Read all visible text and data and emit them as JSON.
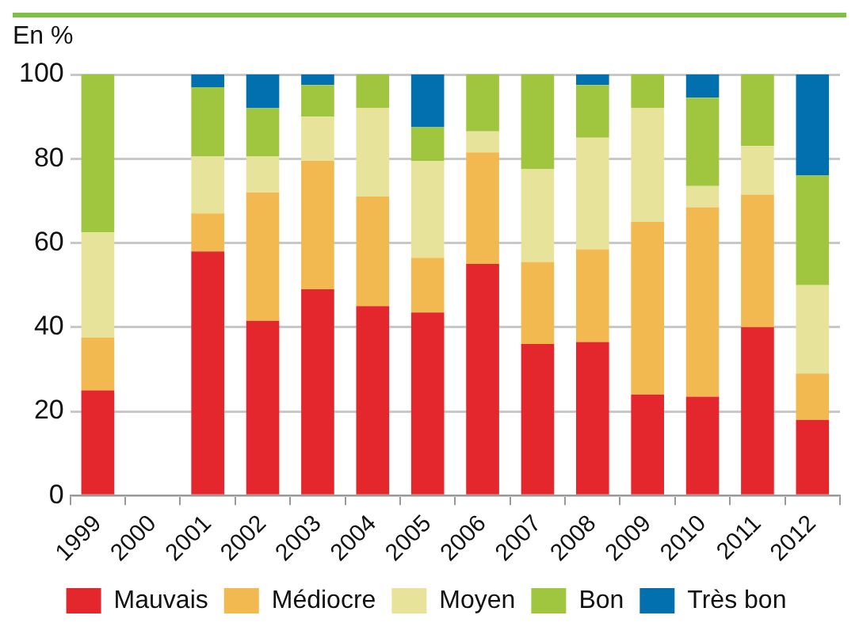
{
  "chart_data": {
    "type": "bar",
    "stacked": true,
    "ylabel": "En %",
    "categories": [
      "1999",
      "2000",
      "2001",
      "2002",
      "2003",
      "2004",
      "2005",
      "2006",
      "2007",
      "2008",
      "2009",
      "2010",
      "2011",
      "2012"
    ],
    "series": [
      {
        "name": "Mauvais",
        "color": "#e4272d",
        "values": [
          25,
          null,
          58,
          41.5,
          49,
          45,
          43.5,
          55,
          36,
          36.5,
          24,
          23.5,
          40,
          18
        ]
      },
      {
        "name": "Médiocre",
        "color": "#f1b94f",
        "values": [
          12.5,
          null,
          9,
          30.5,
          30.5,
          26,
          13,
          26.5,
          19.5,
          22,
          41,
          45,
          31.5,
          11
        ]
      },
      {
        "name": "Moyen",
        "color": "#e8e39b",
        "values": [
          25,
          null,
          13.5,
          8.5,
          10.5,
          21,
          23,
          5,
          22,
          26.5,
          27,
          5,
          11.5,
          21
        ]
      },
      {
        "name": "Bon",
        "color": "#a0c63f",
        "values": [
          37.5,
          null,
          16.5,
          11.5,
          7.5,
          8,
          8,
          13.5,
          22.5,
          12.5,
          8,
          21,
          17,
          26
        ]
      },
      {
        "name": "Très bon",
        "color": "#0270ae",
        "values": [
          0,
          null,
          3,
          8,
          2.5,
          0,
          12.5,
          0,
          0,
          2.5,
          0,
          5.5,
          0,
          24
        ]
      }
    ],
    "ylim": [
      0,
      100
    ],
    "yticks": [
      0,
      20,
      40,
      60,
      80,
      100
    ],
    "grid": "y",
    "legend": "bottom"
  }
}
